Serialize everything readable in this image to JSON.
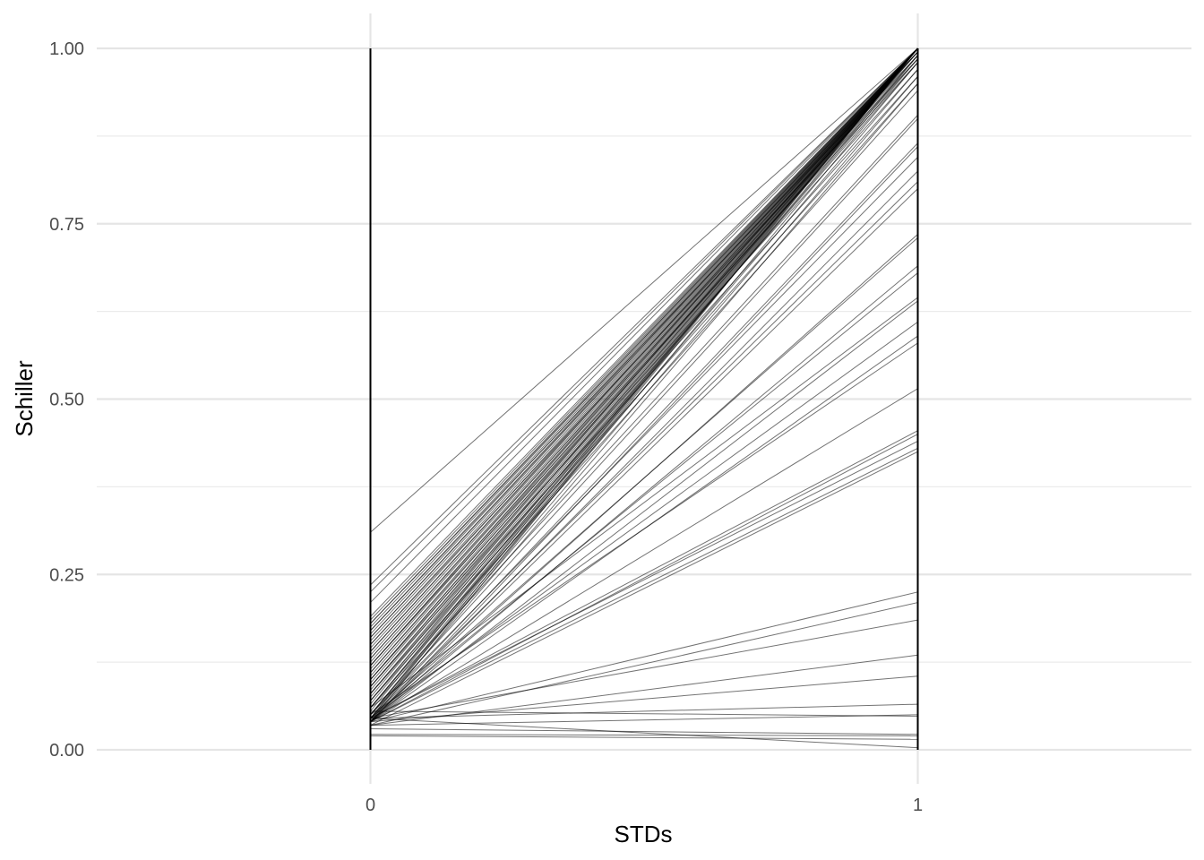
{
  "chart_data": {
    "type": "line",
    "title": "",
    "xlabel": "STDs",
    "ylabel": "Schiller",
    "x_categories": [
      "0",
      "1"
    ],
    "xlim": [
      -0.5,
      1.5
    ],
    "ylim": [
      0,
      1
    ],
    "y_ticks": [
      {
        "value": 0,
        "label": "0.00"
      },
      {
        "value": 0.25,
        "label": "0.25"
      },
      {
        "value": 0.5,
        "label": "0.50"
      },
      {
        "value": 0.75,
        "label": "0.75"
      },
      {
        "value": 1,
        "label": "1.00"
      }
    ],
    "grid": true,
    "legend": "none",
    "line_color": "#000000",
    "segments": [
      [
        0.31,
        1.0
      ],
      [
        0.235,
        1.0
      ],
      [
        0.225,
        1.0
      ],
      [
        0.21,
        1.0
      ],
      [
        0.19,
        1.0
      ],
      [
        0.185,
        1.0
      ],
      [
        0.18,
        1.0
      ],
      [
        0.175,
        1.0
      ],
      [
        0.17,
        1.0
      ],
      [
        0.165,
        1.0
      ],
      [
        0.16,
        1.0
      ],
      [
        0.155,
        1.0
      ],
      [
        0.15,
        1.0
      ],
      [
        0.145,
        1.0
      ],
      [
        0.14,
        1.0
      ],
      [
        0.135,
        1.0
      ],
      [
        0.13,
        1.0
      ],
      [
        0.125,
        1.0
      ],
      [
        0.12,
        1.0
      ],
      [
        0.115,
        1.0
      ],
      [
        0.11,
        1.0
      ],
      [
        0.105,
        1.0
      ],
      [
        0.1,
        1.0
      ],
      [
        0.095,
        1.0
      ],
      [
        0.09,
        1.0
      ],
      [
        0.085,
        1.0
      ],
      [
        0.08,
        1.0
      ],
      [
        0.075,
        1.0
      ],
      [
        0.07,
        1.0
      ],
      [
        0.065,
        1.0
      ],
      [
        0.06,
        1.0
      ],
      [
        0.055,
        1.0
      ],
      [
        0.05,
        1.0
      ],
      [
        0.045,
        1.0
      ],
      [
        0.04,
        1.0
      ],
      [
        0.18,
        0.995
      ],
      [
        0.16,
        0.995
      ],
      [
        0.14,
        0.995
      ],
      [
        0.12,
        0.995
      ],
      [
        0.1,
        0.995
      ],
      [
        0.17,
        0.99
      ],
      [
        0.13,
        0.99
      ],
      [
        0.09,
        0.99
      ],
      [
        0.06,
        0.99
      ],
      [
        0.15,
        0.985
      ],
      [
        0.11,
        0.985
      ],
      [
        0.07,
        0.985
      ],
      [
        0.12,
        0.98
      ],
      [
        0.08,
        0.98
      ],
      [
        0.05,
        0.98
      ],
      [
        0.1,
        0.97
      ],
      [
        0.06,
        0.97
      ],
      [
        0.09,
        0.96
      ],
      [
        0.05,
        0.96
      ],
      [
        0.08,
        0.95
      ],
      [
        0.045,
        0.95
      ],
      [
        0.07,
        0.94
      ],
      [
        0.06,
        0.905
      ],
      [
        0.05,
        0.9
      ],
      [
        0.045,
        0.865
      ],
      [
        0.04,
        0.86
      ],
      [
        0.05,
        0.845
      ],
      [
        0.04,
        0.825
      ],
      [
        0.045,
        0.81
      ],
      [
        0.04,
        0.8
      ],
      [
        0.04,
        0.735
      ],
      [
        0.045,
        0.73
      ],
      [
        0.04,
        0.69
      ],
      [
        0.045,
        0.68
      ],
      [
        0.06,
        0.645
      ],
      [
        0.04,
        0.64
      ],
      [
        0.045,
        0.61
      ],
      [
        0.04,
        0.59
      ],
      [
        0.05,
        0.58
      ],
      [
        0.04,
        0.515
      ],
      [
        0.045,
        0.455
      ],
      [
        0.04,
        0.45
      ],
      [
        0.045,
        0.44
      ],
      [
        0.04,
        0.43
      ],
      [
        0.035,
        0.425
      ],
      [
        0.04,
        0.225
      ],
      [
        0.035,
        0.21
      ],
      [
        0.045,
        0.185
      ],
      [
        0.035,
        0.135
      ],
      [
        0.04,
        0.105
      ],
      [
        0.045,
        0.065
      ],
      [
        0.035,
        0.05
      ],
      [
        0.055,
        0.048
      ],
      [
        0.045,
        0.003
      ],
      [
        0.03,
        0.022
      ],
      [
        0.022,
        0.02
      ],
      [
        0.02,
        0.015
      ]
    ]
  }
}
